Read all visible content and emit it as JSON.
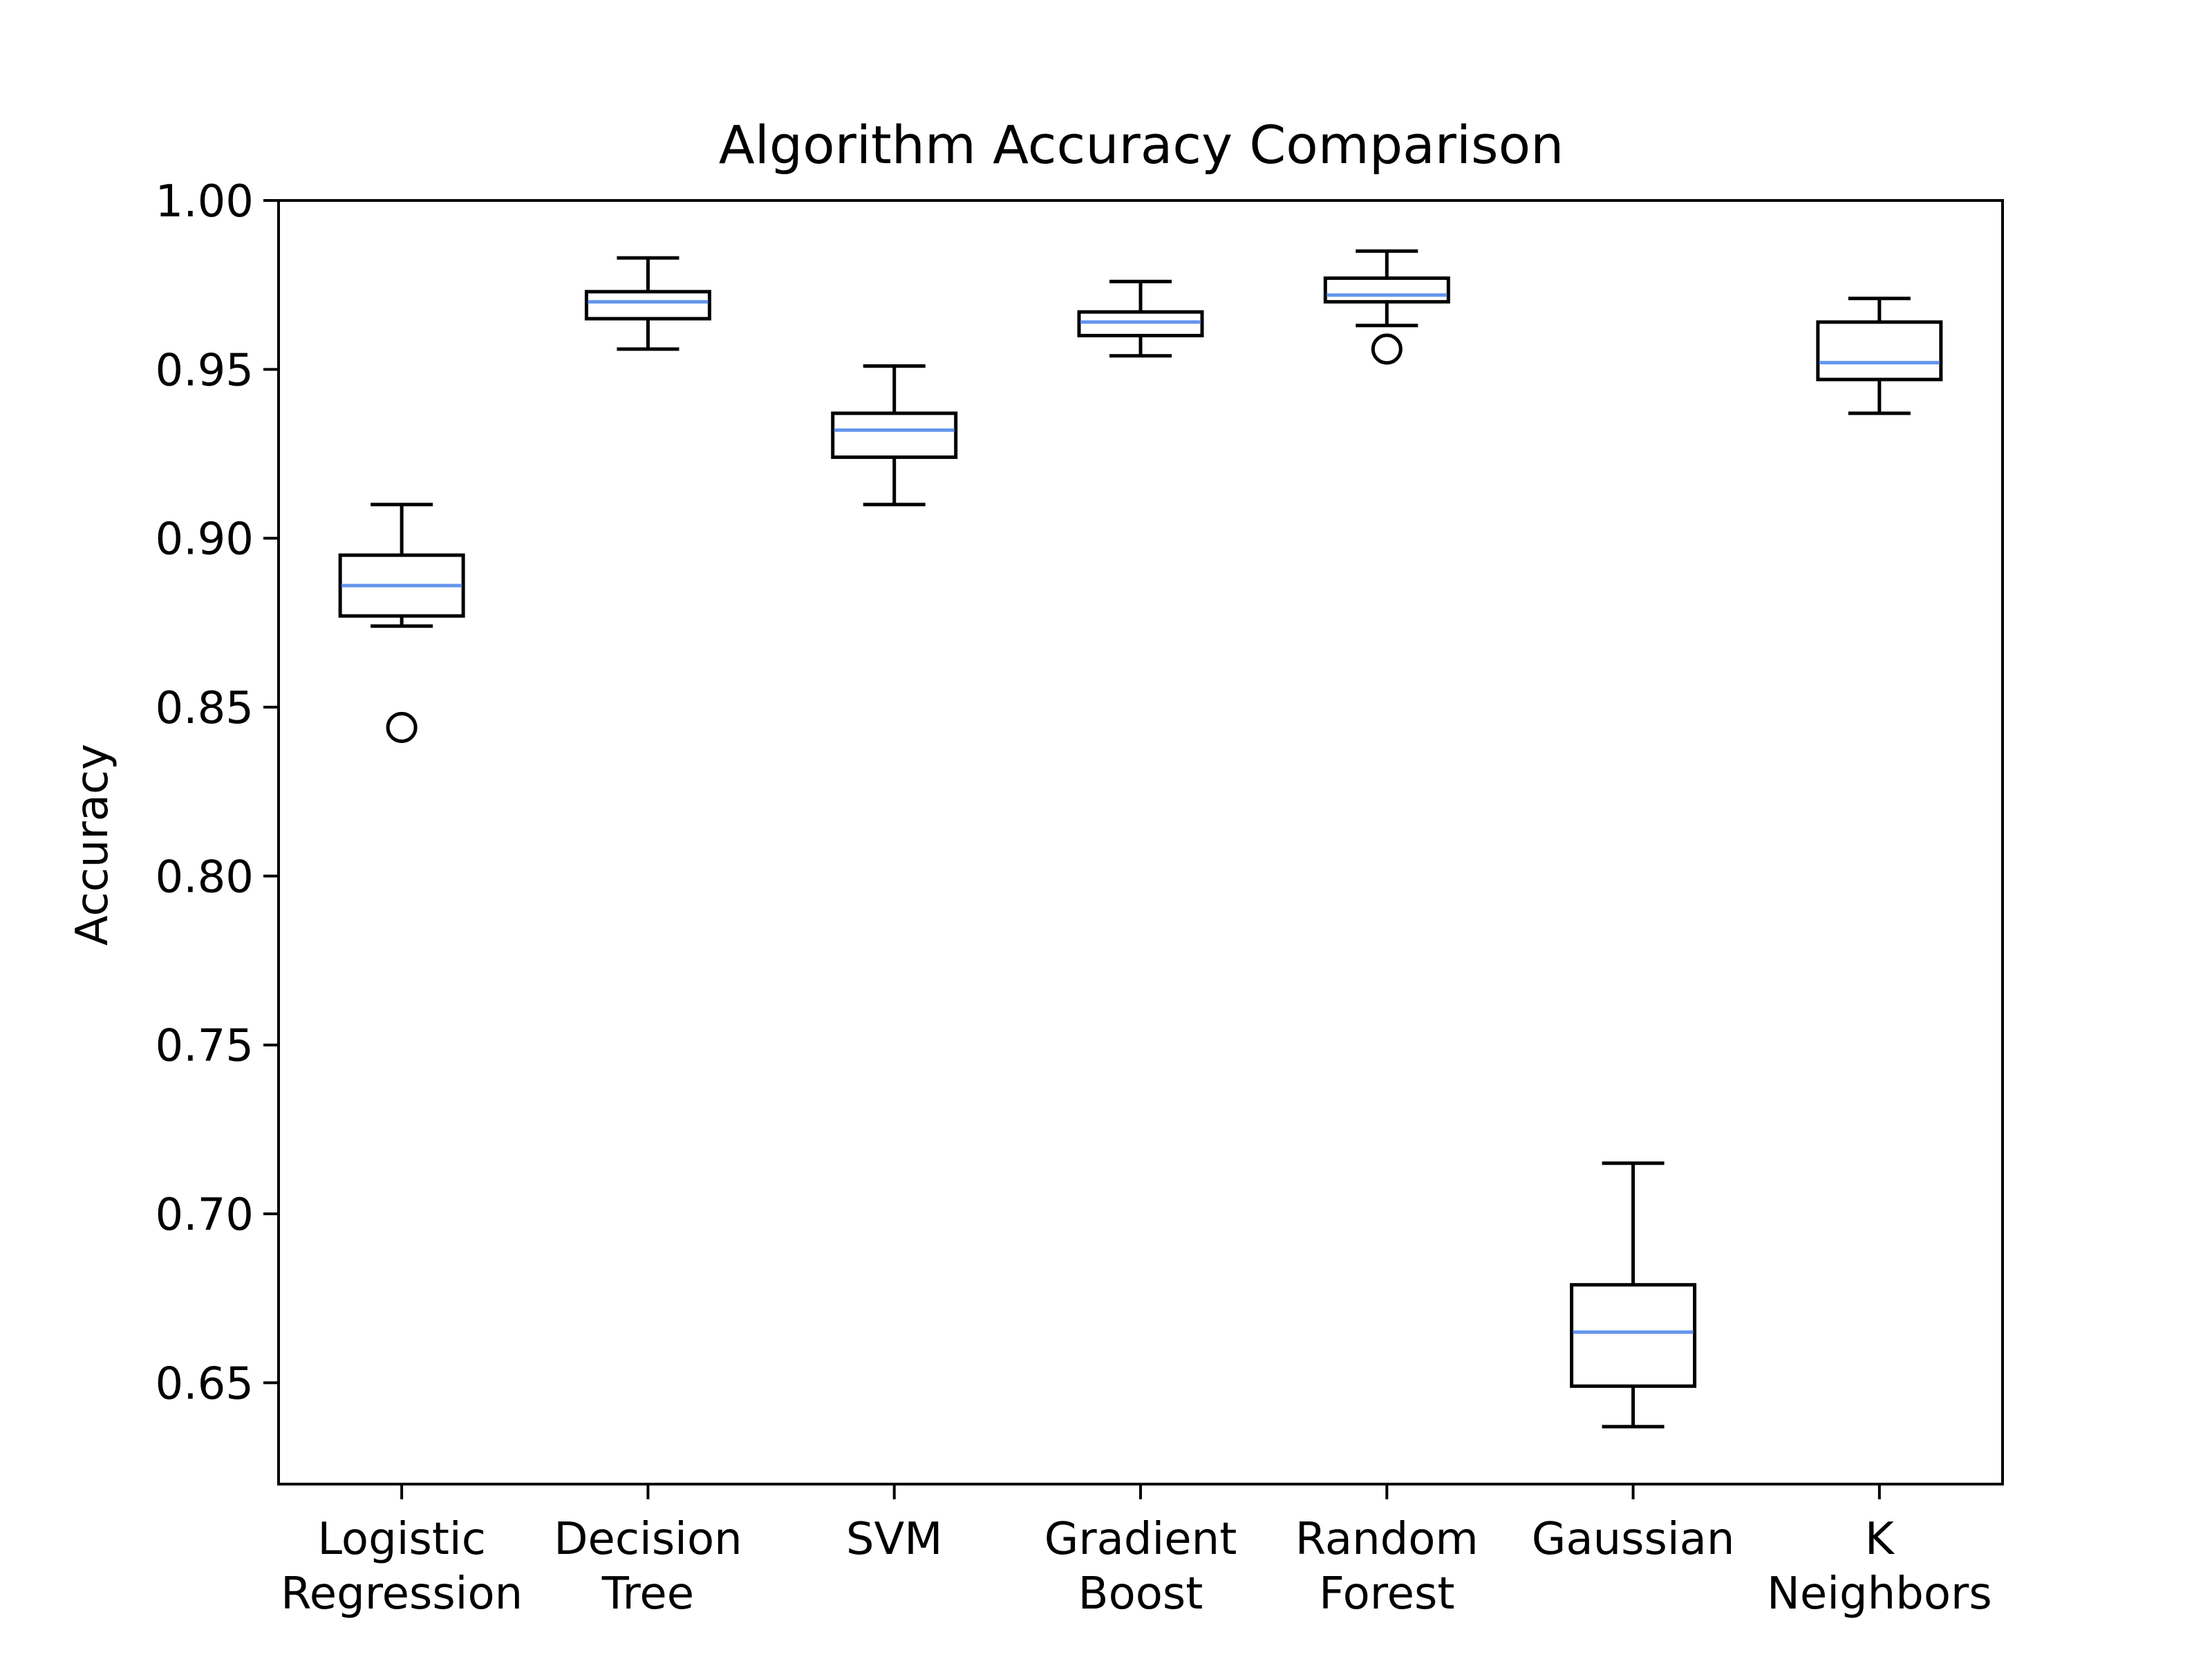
{
  "chart_data": {
    "type": "boxplot",
    "title": "Algorithm Accuracy Comparison",
    "xlabel": "",
    "ylabel": "Accuracy",
    "ylim": [
      0.62,
      1.0
    ],
    "yticks": [
      0.65,
      0.7,
      0.75,
      0.8,
      0.85,
      0.9,
      0.95,
      1.0
    ],
    "ytick_labels": [
      "0.65",
      "0.70",
      "0.75",
      "0.80",
      "0.85",
      "0.90",
      "0.95",
      "1.00"
    ],
    "categories": [
      [
        "Logistic",
        "Regression"
      ],
      [
        "Decision",
        "Tree"
      ],
      [
        "SVM"
      ],
      [
        "Gradient",
        "Boost"
      ],
      [
        "Random",
        "Forest"
      ],
      [
        "Gaussian"
      ],
      [
        "K",
        "Neighbors"
      ]
    ],
    "boxes": [
      {
        "whisker_low": 0.874,
        "q1": 0.877,
        "median": 0.886,
        "q3": 0.895,
        "whisker_high": 0.91,
        "outliers": [
          0.844
        ]
      },
      {
        "whisker_low": 0.956,
        "q1": 0.965,
        "median": 0.97,
        "q3": 0.973,
        "whisker_high": 0.983,
        "outliers": []
      },
      {
        "whisker_low": 0.91,
        "q1": 0.924,
        "median": 0.932,
        "q3": 0.937,
        "whisker_high": 0.951,
        "outliers": []
      },
      {
        "whisker_low": 0.954,
        "q1": 0.96,
        "median": 0.964,
        "q3": 0.967,
        "whisker_high": 0.976,
        "outliers": []
      },
      {
        "whisker_low": 0.963,
        "q1": 0.97,
        "median": 0.972,
        "q3": 0.977,
        "whisker_high": 0.985,
        "outliers": [
          0.956
        ]
      },
      {
        "whisker_low": 0.637,
        "q1": 0.649,
        "median": 0.665,
        "q3": 0.679,
        "whisker_high": 0.715,
        "outliers": []
      },
      {
        "whisker_low": 0.937,
        "q1": 0.947,
        "median": 0.952,
        "q3": 0.964,
        "whisker_high": 0.971,
        "outliers": []
      }
    ],
    "median_color": "#6495ED",
    "box_color": "#000000",
    "grid": false,
    "legend": false
  }
}
